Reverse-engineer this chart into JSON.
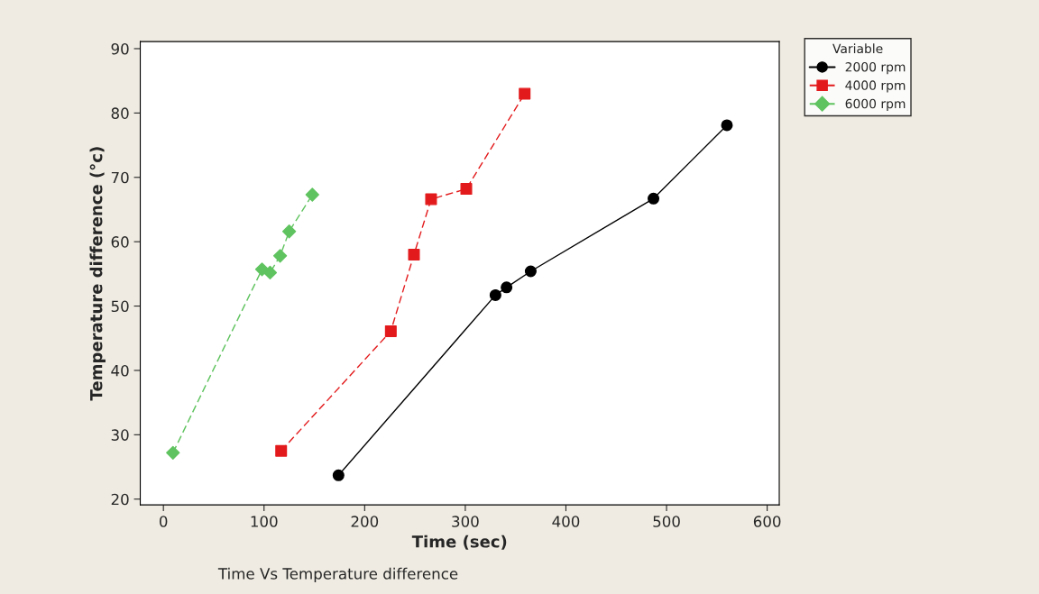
{
  "chart_data": {
    "type": "line",
    "xlabel": "Time (sec)",
    "ylabel": "Temperature difference (°c)",
    "legend_title": "Variable",
    "legend": "top right",
    "grid": false,
    "xlim": [
      -23,
      612
    ],
    "ylim": [
      19.1,
      91.1
    ],
    "xticks": [
      0,
      100,
      200,
      300,
      400,
      500,
      600
    ],
    "yticks": [
      20,
      30,
      40,
      50,
      60,
      70,
      80,
      90
    ],
    "annotations": [
      "Time Vs Temperature difference"
    ],
    "series": [
      {
        "name": "2000 rpm",
        "color": "#000000",
        "marker": "circle",
        "line_style": "solid",
        "x": [
          174,
          330,
          341,
          365,
          487,
          560
        ],
        "values": [
          23.7,
          51.7,
          52.9,
          55.4,
          66.7,
          78.1
        ]
      },
      {
        "name": "4000 rpm",
        "color": "#e31a1c",
        "marker": "square",
        "line_style": "dashed",
        "x": [
          117,
          226,
          249,
          266,
          301,
          359
        ],
        "values": [
          27.5,
          46.1,
          58.0,
          66.6,
          68.2,
          83.0
        ]
      },
      {
        "name": "6000 rpm",
        "color": "#5fc35f",
        "marker": "diamond",
        "line_style": "dashed",
        "x": [
          9.5,
          98,
          106,
          116,
          125,
          148
        ],
        "values": [
          27.2,
          55.7,
          55.2,
          57.8,
          61.6,
          67.3
        ]
      }
    ]
  }
}
